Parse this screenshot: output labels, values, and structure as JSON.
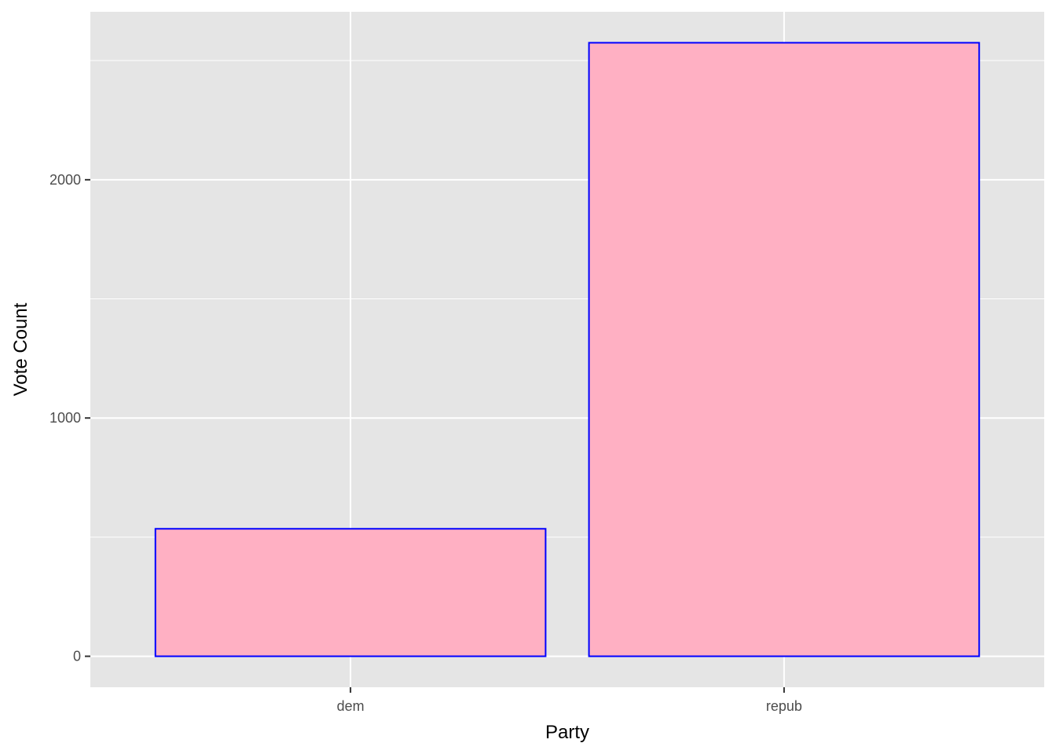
{
  "chart_data": {
    "type": "bar",
    "title": "",
    "xlabel": "Party",
    "ylabel": "Vote Count",
    "categories": [
      "dem",
      "repub"
    ],
    "values": [
      535,
      2575
    ],
    "ylim": [
      -130,
      2705
    ],
    "yticks": [
      0,
      1000,
      2000
    ],
    "y_minor_ticks": [
      500,
      1500,
      2500
    ],
    "ytick_labels": [
      "0",
      "1000",
      "2000"
    ],
    "grid": true,
    "legend": "none",
    "colors": {
      "panel": "#e5e5e5",
      "grid": "#ffffff",
      "bar_fill": "#ffb0c3",
      "bar_stroke": "#0000ff",
      "tick": "#333333"
    }
  }
}
